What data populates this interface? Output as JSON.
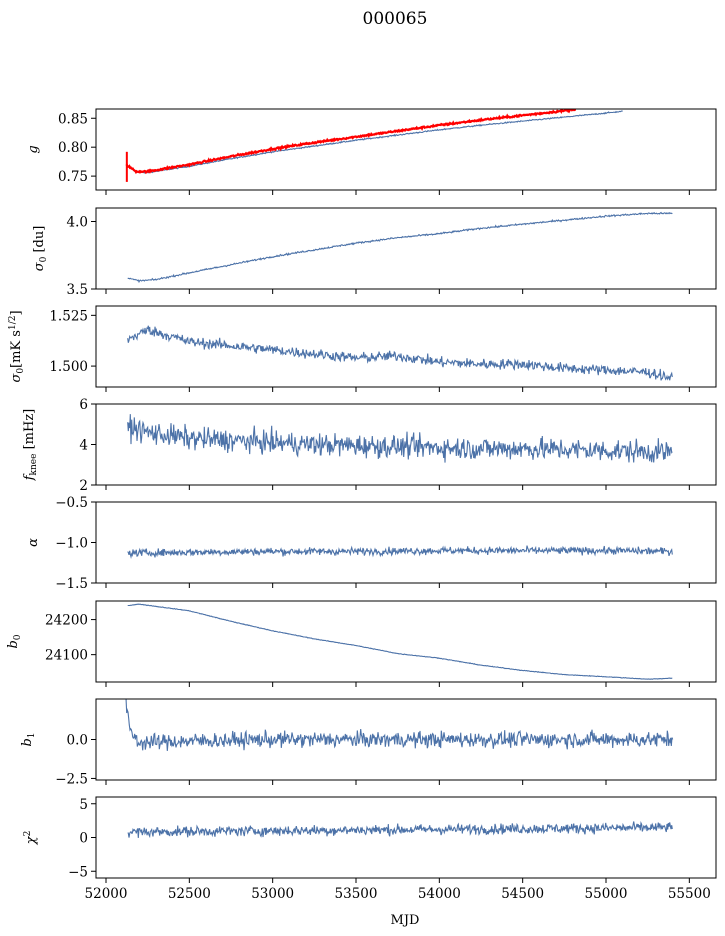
{
  "figure": {
    "title": "000065",
    "xlabel": "MJD"
  },
  "colors": {
    "series": "#4c72a8",
    "fit": "#ff0000",
    "axes": "#000000"
  },
  "chart_data": [
    {
      "type": "line",
      "ylabel": "g",
      "xlim": [
        51940,
        55660
      ],
      "ylim": [
        0.726,
        0.866
      ],
      "yticks": [
        0.75,
        0.8,
        0.85
      ],
      "ytick_labels": [
        "0.75",
        "0.80",
        "0.85"
      ],
      "series": [
        {
          "x": [
            52120,
            52180,
            52250,
            52500,
            52750,
            53000,
            53250,
            53500,
            53750,
            54000,
            54250,
            54500,
            54750,
            55000,
            55100
          ],
          "y": [
            0.769,
            0.757,
            0.756,
            0.767,
            0.78,
            0.792,
            0.802,
            0.812,
            0.821,
            0.83,
            0.838,
            0.845,
            0.852,
            0.859,
            0.862
          ],
          "noise": 0.001
        },
        {
          "x": [
            52120,
            52180,
            52250,
            52500,
            52750,
            53000,
            53250,
            53500,
            53750,
            54000,
            54250,
            54500,
            54750,
            54820
          ],
          "y": [
            0.77,
            0.758,
            0.758,
            0.77,
            0.784,
            0.797,
            0.808,
            0.818,
            0.828,
            0.838,
            0.847,
            0.855,
            0.863,
            0.866
          ],
          "noise": 0.0015,
          "color": "fit",
          "errorbar": {
            "x": 52125,
            "lo": 0.74,
            "hi": 0.792
          }
        }
      ]
    },
    {
      "type": "line",
      "ylabel": "σ0 [du]",
      "xlim": [
        51940,
        55660
      ],
      "ylim": [
        3.5,
        4.1
      ],
      "yticks": [
        3.5,
        4.0
      ],
      "ytick_labels": [
        "3.5",
        "4.0"
      ],
      "series": [
        {
          "x": [
            52130,
            52200,
            52300,
            52500,
            52750,
            53000,
            53250,
            53500,
            53750,
            54000,
            54250,
            54500,
            54750,
            55000,
            55250,
            55400
          ],
          "y": [
            3.58,
            3.56,
            3.57,
            3.62,
            3.68,
            3.74,
            3.79,
            3.84,
            3.88,
            3.91,
            3.95,
            3.98,
            4.01,
            4.04,
            4.06,
            4.06
          ],
          "noise": 0.006
        }
      ]
    },
    {
      "type": "line",
      "ylabel": "σ0[mK s^1/2]",
      "xlim": [
        51940,
        55660
      ],
      "ylim": [
        1.4897,
        1.5296
      ],
      "yticks": [
        1.5,
        1.525
      ],
      "ytick_labels": [
        "1.500",
        "1.525"
      ],
      "series": [
        {
          "x": [
            52130,
            52250,
            52500,
            52750,
            53000,
            53250,
            53500,
            53750,
            54000,
            54250,
            54500,
            54750,
            55000,
            55250,
            55400
          ],
          "y": [
            1.513,
            1.518,
            1.512,
            1.51,
            1.508,
            1.506,
            1.504,
            1.505,
            1.502,
            1.501,
            1.501,
            1.499,
            1.498,
            1.497,
            1.494
          ],
          "noise": 0.0025
        }
      ]
    },
    {
      "type": "line",
      "ylabel": "fknee [mHz]",
      "xlim": [
        51940,
        55660
      ],
      "ylim": [
        2,
        6
      ],
      "yticks": [
        2,
        4,
        6
      ],
      "ytick_labels": [
        "2",
        "4",
        "6"
      ],
      "series": [
        {
          "x": [
            52130,
            52250,
            52500,
            52750,
            53000,
            53250,
            53500,
            53750,
            54000,
            54250,
            54500,
            54750,
            55000,
            55250,
            55400
          ],
          "y": [
            4.9,
            4.6,
            4.3,
            4.2,
            4.1,
            4.0,
            3.95,
            3.9,
            3.85,
            3.8,
            3.8,
            3.75,
            3.7,
            3.65,
            3.6
          ],
          "noise": 0.55
        }
      ]
    },
    {
      "type": "line",
      "ylabel": "α",
      "xlim": [
        51940,
        55660
      ],
      "ylim": [
        -1.5,
        -0.5
      ],
      "yticks": [
        -1.5,
        -1.0,
        -0.5
      ],
      "ytick_labels": [
        "−1.5",
        "−1.0",
        "−0.5"
      ],
      "series": [
        {
          "x": [
            52130,
            52500,
            53000,
            53500,
            54000,
            54500,
            55000,
            55400
          ],
          "y": [
            -1.13,
            -1.12,
            -1.11,
            -1.11,
            -1.1,
            -1.1,
            -1.1,
            -1.11
          ],
          "noise": 0.045
        }
      ]
    },
    {
      "type": "line",
      "ylabel": "b0",
      "xlim": [
        51940,
        55660
      ],
      "ylim": [
        24022,
        24253
      ],
      "yticks": [
        24100,
        24200
      ],
      "ytick_labels": [
        "24100",
        "24200"
      ],
      "series": [
        {
          "x": [
            52130,
            52200,
            52500,
            52750,
            53000,
            53250,
            53500,
            53750,
            54000,
            54250,
            54500,
            54750,
            55000,
            55250,
            55400
          ],
          "y": [
            24240,
            24244,
            24225,
            24195,
            24168,
            24145,
            24126,
            24103,
            24090,
            24070,
            24055,
            24043,
            24037,
            24030,
            24033
          ],
          "noise": 0.8
        }
      ]
    },
    {
      "type": "line",
      "ylabel": "b1",
      "xlim": [
        51940,
        55660
      ],
      "ylim": [
        -2.6,
        2.6
      ],
      "yticks": [
        -2.5,
        0.0
      ],
      "ytick_labels": [
        "−2.5",
        "0.0"
      ],
      "series": [
        {
          "x": [
            52120,
            52130,
            52160,
            52200,
            52500,
            53000,
            53500,
            54000,
            54500,
            55000,
            55400
          ],
          "y": [
            2.3,
            1.3,
            0.3,
            -0.2,
            -0.1,
            0.0,
            0.0,
            0.0,
            0.0,
            0.0,
            0.0
          ],
          "noise": 0.5
        }
      ]
    },
    {
      "type": "line",
      "ylabel": "χ2",
      "xlim": [
        51940,
        55660
      ],
      "ylim": [
        -6,
        6
      ],
      "yticks": [
        -5,
        0,
        5
      ],
      "ytick_labels": [
        "−5",
        "0",
        "5"
      ],
      "xticks": [
        52000,
        52500,
        53000,
        53500,
        54000,
        54500,
        55000,
        55500
      ],
      "xtick_labels": [
        "52000",
        "52500",
        "53000",
        "53500",
        "54000",
        "54500",
        "55000",
        "55500"
      ],
      "series": [
        {
          "x": [
            52130,
            52500,
            53000,
            53500,
            54000,
            54500,
            55000,
            55400
          ],
          "y": [
            0.8,
            0.9,
            1.0,
            1.1,
            1.2,
            1.3,
            1.4,
            1.5
          ],
          "noise": 0.75
        }
      ]
    }
  ]
}
